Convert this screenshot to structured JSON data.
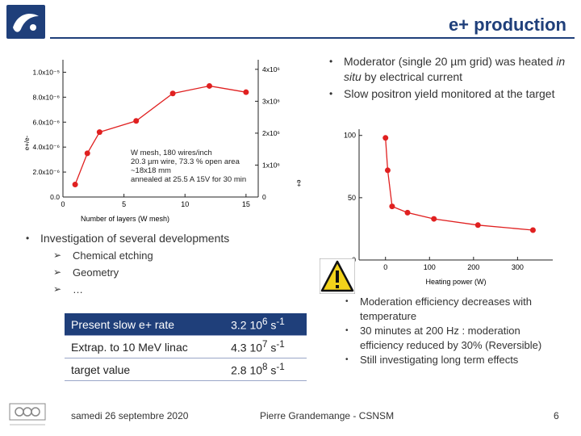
{
  "header": {
    "title": "e+ production",
    "logo_icon": "institute-logo-icon"
  },
  "bullets_right": [
    {
      "pre": "Moderator (single 20 µm grid) was heated ",
      "em": "in situ",
      "post": " by electrical current"
    },
    {
      "pre": "Slow positron yield monitored at the target",
      "em": "",
      "post": ""
    }
  ],
  "bullet_left": "Investigation of several developments",
  "sub_items": [
    "Chemical etching",
    "Geometry",
    "…"
  ],
  "notes": [
    "Moderation efficiency decreases with temperature",
    "30 minutes at 200 Hz : moderation efficiency reduced by 30% (Reversible)",
    "Still investigating long term effects"
  ],
  "rates": [
    {
      "label": "Present slow e+ rate",
      "value": "3.2 10",
      "exp": "6",
      "unit": " s",
      "unit_exp": "-1"
    },
    {
      "label": "Extrap. to  10 MeV linac",
      "value": "4.3 10",
      "exp": "7",
      "unit": " s",
      "unit_exp": "-1"
    },
    {
      "label": "target value",
      "value": "2.8 10",
      "exp": "8",
      "unit": " s",
      "unit_exp": "-1"
    }
  ],
  "footer": {
    "date": "samedi 26 septembre 2020",
    "author": "Pierre Grandemange - CSNSM",
    "page": "6"
  },
  "warning_icon": "warning-sign-icon",
  "chart_data": [
    {
      "type": "line",
      "xlabel": "Number of layers (W mesh)",
      "ylabel": "e+/e-",
      "y2label": "e+",
      "xlim": [
        0,
        16
      ],
      "ylim": [
        0,
        1.1e-05
      ],
      "x_ticks": [
        "0",
        "5",
        "10",
        "15"
      ],
      "y_ticks": [
        "0.0",
        "2.0x10⁻⁶",
        "4.0x10⁻⁶",
        "6.0x10⁻⁶",
        "8.0x10⁻⁶",
        "1.0x10⁻⁵"
      ],
      "y2_ticks": [
        "0",
        "1x10⁶",
        "2x10⁶",
        "3x10⁶",
        "4x10⁶"
      ],
      "x": [
        1,
        2,
        3,
        6,
        9,
        12,
        15
      ],
      "values": [
        1e-06,
        3.5e-06,
        5.2e-06,
        6.1e-06,
        8.3e-06,
        8.9e-06,
        8.4e-06
      ],
      "annotation": [
        "W mesh, 180 wires/inch",
        "20.3 µm wire, 73.3 % open area",
        "~18x18 mm",
        "annealed at 25.5 A 15V for 30 min"
      ],
      "grid": false
    },
    {
      "type": "line",
      "xlabel": "Heating power (W)",
      "xlim": [
        -60,
        380
      ],
      "ylim": [
        0,
        105
      ],
      "x_ticks": [
        "0",
        "100",
        "200",
        "300"
      ],
      "y_ticks": [
        "0",
        "50",
        "100"
      ],
      "x": [
        0,
        5,
        15,
        50,
        110,
        210,
        335
      ],
      "values": [
        98,
        72,
        43,
        38,
        33,
        28,
        24
      ],
      "grid": false
    }
  ]
}
